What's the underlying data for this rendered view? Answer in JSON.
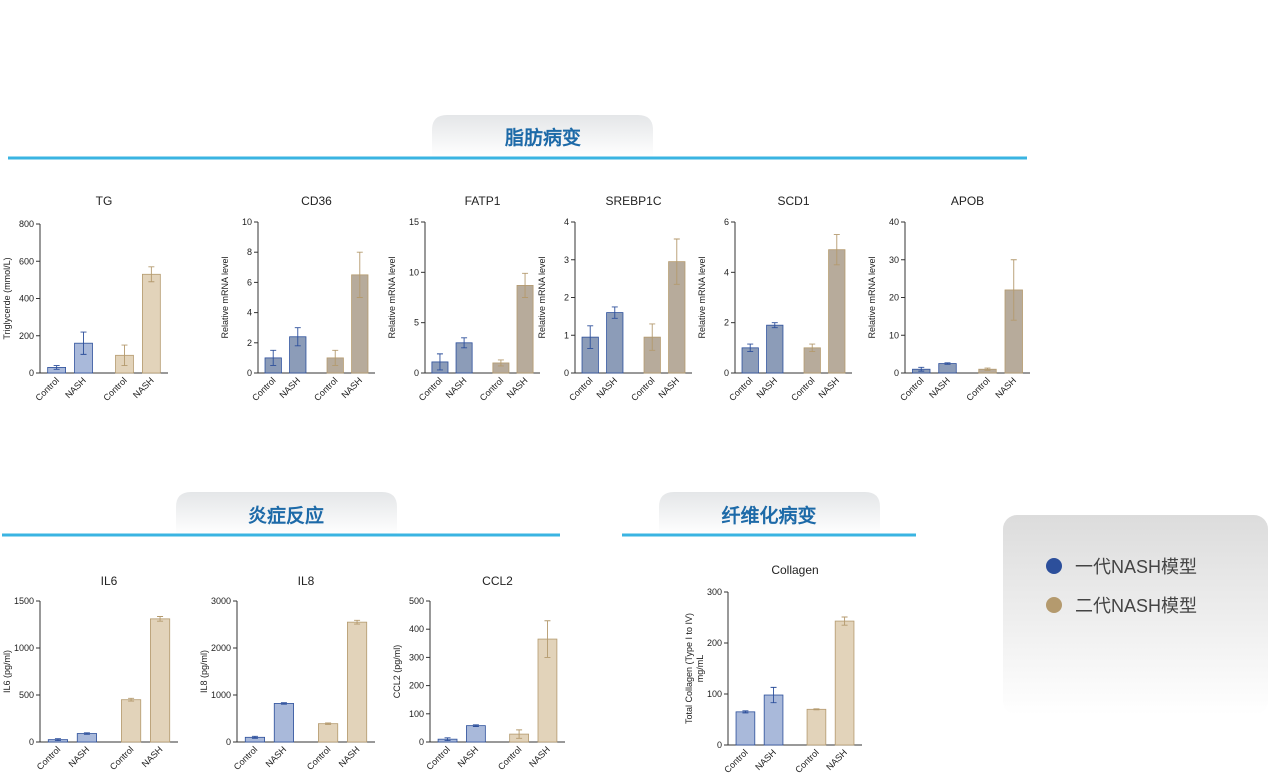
{
  "sections": [
    {
      "title": "脂肪病变"
    },
    {
      "title": "炎症反应"
    },
    {
      "title": "纤维化病变"
    }
  ],
  "legend": [
    {
      "label": "一代NASH模型",
      "color": "#2c4f9b"
    },
    {
      "label": "二代NASH模型",
      "color": "#b49a6e"
    }
  ],
  "chart_data": [
    {
      "type": "bar",
      "title": "TG",
      "ylabel": "Triglycerde (mmol/L)",
      "categories": [
        "Control",
        "NASH",
        "Control",
        "NASH"
      ],
      "values": [
        30,
        160,
        95,
        530
      ],
      "errors": [
        10,
        60,
        55,
        40
      ],
      "colors": [
        "#a9b9da",
        "#a9b9da",
        "#e2d3ba",
        "#e2d3ba"
      ],
      "edge_colors": [
        "#2c4f9b",
        "#2c4f9b",
        "#b49a6e",
        "#b49a6e"
      ],
      "ylim": [
        0,
        800
      ],
      "yticks": [
        0,
        200,
        400,
        600,
        800
      ]
    },
    {
      "type": "bar",
      "title": "CD36",
      "ylabel": "Relative mRNA level",
      "categories": [
        "Control",
        "NASH",
        "Control",
        "NASH"
      ],
      "values": [
        1.0,
        2.4,
        1.0,
        6.5
      ],
      "errors": [
        0.5,
        0.6,
        0.5,
        1.5
      ],
      "colors": [
        "#8c9cb8",
        "#8c9cb8",
        "#b7ab9b",
        "#b7ab9b"
      ],
      "edge_colors": [
        "#2c4f9b",
        "#2c4f9b",
        "#b49a6e",
        "#b49a6e"
      ],
      "ylim": [
        0,
        10
      ],
      "yticks": [
        0,
        2,
        4,
        6,
        8,
        10
      ]
    },
    {
      "type": "bar",
      "title": "FATP1",
      "ylabel": "Relative mRNA level",
      "categories": [
        "Control",
        "NASH",
        "Control",
        "NASH"
      ],
      "values": [
        1.1,
        3.0,
        1.0,
        8.7
      ],
      "errors": [
        0.8,
        0.5,
        0.3,
        1.2
      ],
      "colors": [
        "#8c9cb8",
        "#8c9cb8",
        "#b7ab9b",
        "#b7ab9b"
      ],
      "edge_colors": [
        "#2c4f9b",
        "#2c4f9b",
        "#b49a6e",
        "#b49a6e"
      ],
      "ylim": [
        0,
        15
      ],
      "yticks": [
        0,
        5,
        10,
        15
      ]
    },
    {
      "type": "bar",
      "title": "SREBP1C",
      "ylabel": "Relative mRNA level",
      "categories": [
        "Control",
        "NASH",
        "Control",
        "NASH"
      ],
      "values": [
        0.95,
        1.6,
        0.95,
        2.95
      ],
      "errors": [
        0.3,
        0.15,
        0.35,
        0.6
      ],
      "colors": [
        "#8c9cb8",
        "#8c9cb8",
        "#b7ab9b",
        "#b7ab9b"
      ],
      "edge_colors": [
        "#2c4f9b",
        "#2c4f9b",
        "#b49a6e",
        "#b49a6e"
      ],
      "ylim": [
        0,
        4
      ],
      "yticks": [
        0,
        1,
        2,
        3,
        4
      ]
    },
    {
      "type": "bar",
      "title": "SCD1",
      "ylabel": "Relative mRNA level",
      "categories": [
        "Control",
        "NASH",
        "Control",
        "NASH"
      ],
      "values": [
        1.0,
        1.9,
        1.0,
        4.9
      ],
      "errors": [
        0.15,
        0.1,
        0.15,
        0.6
      ],
      "colors": [
        "#8c9cb8",
        "#8c9cb8",
        "#b7ab9b",
        "#b7ab9b"
      ],
      "edge_colors": [
        "#2c4f9b",
        "#2c4f9b",
        "#b49a6e",
        "#b49a6e"
      ],
      "ylim": [
        0,
        6
      ],
      "yticks": [
        0,
        2,
        4,
        6
      ]
    },
    {
      "type": "bar",
      "title": "APOB",
      "ylabel": "Relative mRNA level",
      "categories": [
        "Control",
        "NASH",
        "Control",
        "NASH"
      ],
      "values": [
        1.0,
        2.5,
        1.0,
        22
      ],
      "errors": [
        0.5,
        0.2,
        0.3,
        8
      ],
      "colors": [
        "#8c9cb8",
        "#8c9cb8",
        "#b7ab9b",
        "#b7ab9b"
      ],
      "edge_colors": [
        "#2c4f9b",
        "#2c4f9b",
        "#b49a6e",
        "#b49a6e"
      ],
      "ylim": [
        0,
        40
      ],
      "yticks": [
        0,
        10,
        20,
        30,
        40
      ]
    },
    {
      "type": "bar",
      "title": "IL6",
      "ylabel": "IL6 (pg/ml)",
      "categories": [
        "Control",
        "NASH",
        "Control",
        "NASH"
      ],
      "values": [
        25,
        90,
        450,
        1310
      ],
      "errors": [
        10,
        8,
        15,
        25
      ],
      "colors": [
        "#a9b9da",
        "#a9b9da",
        "#e2d3ba",
        "#e2d3ba"
      ],
      "edge_colors": [
        "#2c4f9b",
        "#2c4f9b",
        "#b49a6e",
        "#b49a6e"
      ],
      "ylim": [
        0,
        1500
      ],
      "yticks": [
        0,
        500,
        1000,
        1500
      ]
    },
    {
      "type": "bar",
      "title": "IL8",
      "ylabel": "IL8 (pg/ml)",
      "categories": [
        "Control",
        "NASH",
        "Control",
        "NASH"
      ],
      "values": [
        100,
        820,
        390,
        2550
      ],
      "errors": [
        20,
        15,
        15,
        40
      ],
      "colors": [
        "#a9b9da",
        "#a9b9da",
        "#e2d3ba",
        "#e2d3ba"
      ],
      "edge_colors": [
        "#2c4f9b",
        "#2c4f9b",
        "#b49a6e",
        "#b49a6e"
      ],
      "ylim": [
        0,
        3000
      ],
      "yticks": [
        0,
        1000,
        2000,
        3000
      ]
    },
    {
      "type": "bar",
      "title": "CCL2",
      "ylabel": "CCL2 (pg/ml)",
      "categories": [
        "Control",
        "NASH",
        "Control",
        "NASH"
      ],
      "values": [
        10,
        58,
        28,
        365
      ],
      "errors": [
        5,
        3,
        15,
        65
      ],
      "colors": [
        "#a9b9da",
        "#a9b9da",
        "#e2d3ba",
        "#e2d3ba"
      ],
      "edge_colors": [
        "#2c4f9b",
        "#2c4f9b",
        "#b49a6e",
        "#b49a6e"
      ],
      "ylim": [
        0,
        500
      ],
      "yticks": [
        0,
        100,
        200,
        300,
        400,
        500
      ]
    },
    {
      "type": "bar",
      "title": "Collagen",
      "ylabel": [
        "Total Collagen (Type I to IV)",
        "mg/mL"
      ],
      "categories": [
        "Control",
        "NASH",
        "Control",
        "NASH"
      ],
      "values": [
        65,
        98,
        70,
        243
      ],
      "errors": [
        2,
        15,
        1,
        8
      ],
      "colors": [
        "#a9b9da",
        "#a9b9da",
        "#e2d3ba",
        "#e2d3ba"
      ],
      "edge_colors": [
        "#2c4f9b",
        "#2c4f9b",
        "#b49a6e",
        "#b49a6e"
      ],
      "ylim": [
        0,
        300
      ],
      "yticks": [
        0,
        100,
        200,
        300
      ]
    }
  ]
}
